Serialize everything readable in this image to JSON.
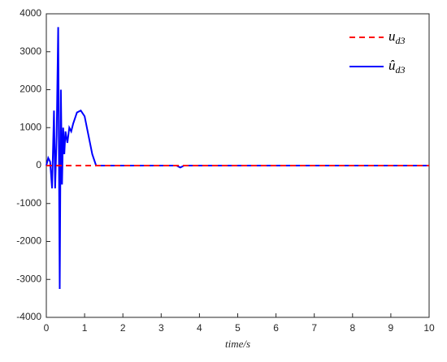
{
  "chart_data": {
    "type": "line",
    "x_label": "time/s",
    "xlim": [
      0,
      10
    ],
    "xticks": [
      0,
      1,
      2,
      3,
      4,
      5,
      6,
      7,
      8,
      9,
      10
    ],
    "ylim": [
      -4000,
      4000
    ],
    "yticks": [
      -4000,
      -3000,
      -2000,
      -1000,
      0,
      1000,
      2000,
      3000,
      4000
    ],
    "grid": false,
    "legend": "upper right",
    "series": [
      {
        "name": "u_d3",
        "color": "#ff0000",
        "dash": true,
        "x": [
          0,
          10
        ],
        "values": [
          0,
          0
        ]
      },
      {
        "name": "û_d3",
        "color": "#0000ff",
        "dash": false,
        "x": [
          0,
          0.05,
          0.1,
          0.15,
          0.2,
          0.23,
          0.27,
          0.31,
          0.35,
          0.38,
          0.41,
          0.44,
          0.47,
          0.5,
          0.55,
          0.6,
          0.65,
          0.7,
          0.8,
          0.9,
          1.0,
          1.1,
          1.2,
          1.3,
          3.4,
          3.5,
          3.6,
          10
        ],
        "values": [
          0,
          200,
          100,
          -600,
          1450,
          -600,
          800,
          3650,
          -3250,
          2000,
          -500,
          1000,
          300,
          900,
          600,
          1000,
          900,
          1100,
          1400,
          1450,
          1300,
          800,
          300,
          0,
          0,
          -50,
          0,
          0
        ]
      }
    ]
  }
}
